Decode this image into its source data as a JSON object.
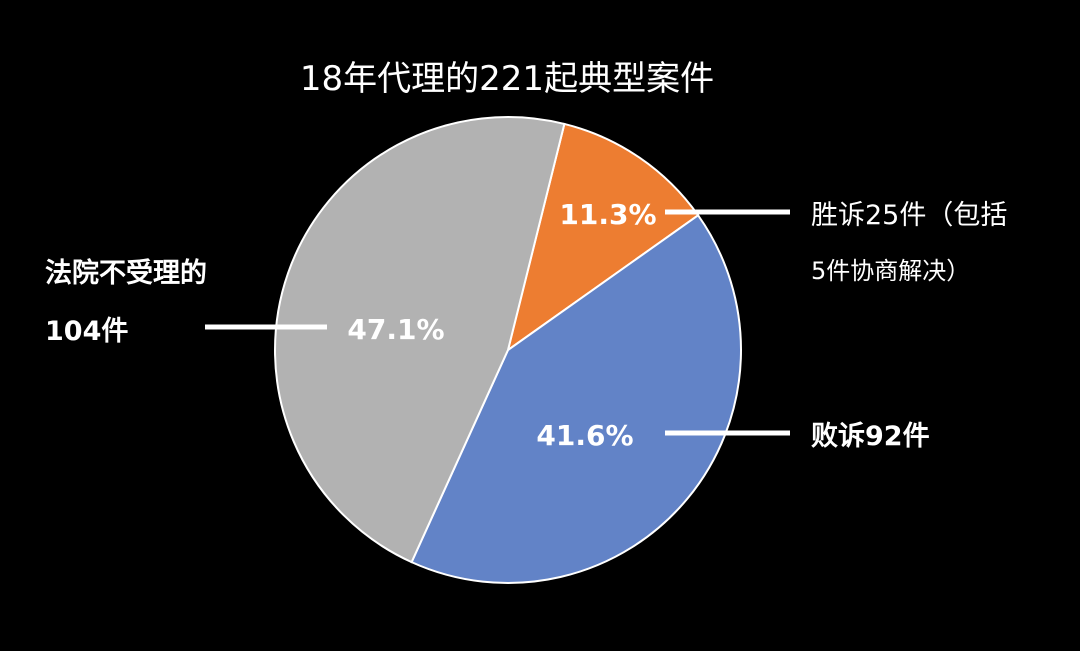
{
  "chart_data": {
    "type": "pie",
    "title": "18年代理的221起典型案件",
    "slices": [
      {
        "key": "win",
        "percent_label": "11.3%",
        "value": 11.3,
        "label_lines": [
          "胜诉25件（包括",
          "5件协商解决）"
        ],
        "color": "#ED7D31"
      },
      {
        "key": "lose",
        "percent_label": "41.6%",
        "value": 41.6,
        "label_lines": [
          "败诉92件"
        ],
        "color": "#6283C7"
      },
      {
        "key": "rejected",
        "percent_label": "47.1%",
        "value": 47.1,
        "label_lines": [
          "法院不受理的",
          "104件"
        ],
        "color": "#B2B2B2"
      }
    ]
  }
}
